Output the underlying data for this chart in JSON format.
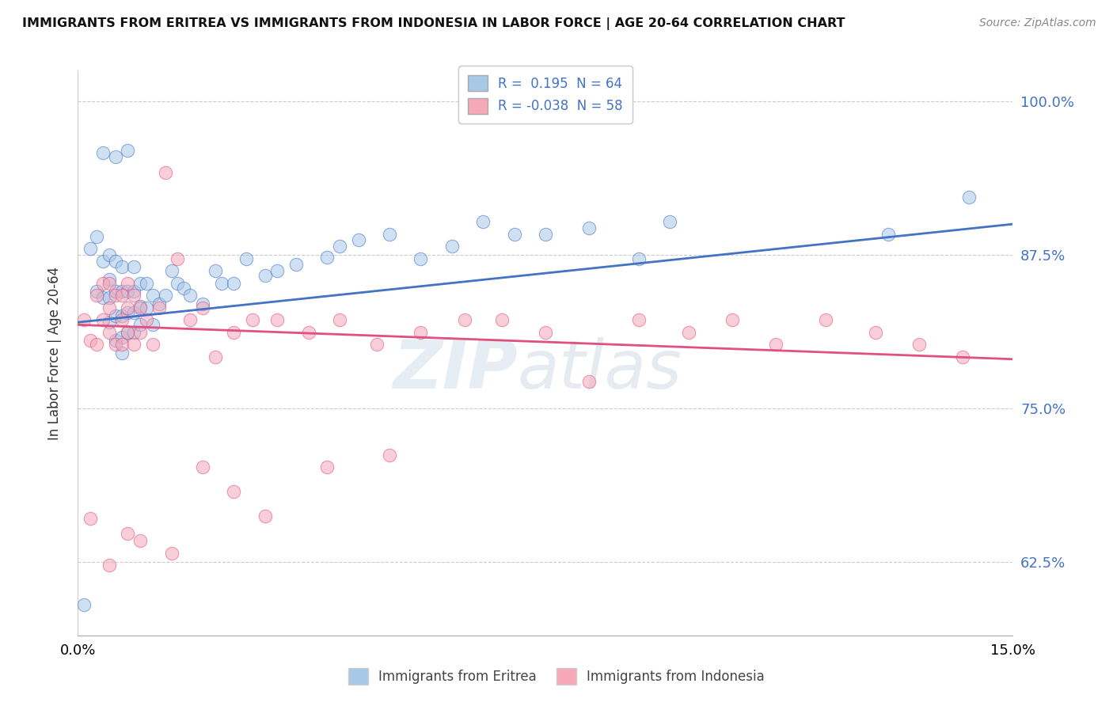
{
  "title": "IMMIGRANTS FROM ERITREA VS IMMIGRANTS FROM INDONESIA IN LABOR FORCE | AGE 20-64 CORRELATION CHART",
  "source": "Source: ZipAtlas.com",
  "ylabel": "In Labor Force | Age 20-64",
  "xlim": [
    0.0,
    0.15
  ],
  "ylim": [
    0.565,
    1.025
  ],
  "ytick_labels": [
    "62.5%",
    "75.0%",
    "87.5%",
    "100.0%"
  ],
  "ytick_values": [
    0.625,
    0.75,
    0.875,
    1.0
  ],
  "color_eritrea": "#a8c8e8",
  "color_indonesia": "#f4a8b8",
  "line_color_eritrea": "#4472c4",
  "line_color_indonesia": "#e05080",
  "r_eritrea": 0.195,
  "n_eritrea": 64,
  "r_indonesia": -0.038,
  "n_indonesia": 58,
  "background_color": "#ffffff",
  "watermark_zip": "ZIP",
  "watermark_atlas": "atlas",
  "eritrea_x": [
    0.001,
    0.002,
    0.003,
    0.003,
    0.004,
    0.004,
    0.005,
    0.005,
    0.005,
    0.005,
    0.006,
    0.006,
    0.006,
    0.006,
    0.007,
    0.007,
    0.007,
    0.007,
    0.007,
    0.008,
    0.008,
    0.008,
    0.009,
    0.009,
    0.009,
    0.009,
    0.01,
    0.01,
    0.01,
    0.011,
    0.011,
    0.012,
    0.012,
    0.013,
    0.014,
    0.015,
    0.016,
    0.017,
    0.018,
    0.02,
    0.022,
    0.023,
    0.025,
    0.027,
    0.03,
    0.032,
    0.035,
    0.04,
    0.042,
    0.045,
    0.05,
    0.055,
    0.06,
    0.065,
    0.07,
    0.075,
    0.082,
    0.09,
    0.095,
    0.13,
    0.143,
    0.004,
    0.006,
    0.008
  ],
  "eritrea_y": [
    0.59,
    0.88,
    0.845,
    0.89,
    0.84,
    0.87,
    0.82,
    0.84,
    0.855,
    0.875,
    0.805,
    0.825,
    0.845,
    0.87,
    0.795,
    0.808,
    0.825,
    0.845,
    0.865,
    0.812,
    0.828,
    0.845,
    0.812,
    0.828,
    0.845,
    0.865,
    0.818,
    0.833,
    0.852,
    0.832,
    0.852,
    0.818,
    0.842,
    0.835,
    0.842,
    0.862,
    0.852,
    0.848,
    0.842,
    0.835,
    0.862,
    0.852,
    0.852,
    0.872,
    0.858,
    0.862,
    0.867,
    0.873,
    0.882,
    0.887,
    0.892,
    0.872,
    0.882,
    0.902,
    0.892,
    0.892,
    0.897,
    0.872,
    0.902,
    0.892,
    0.922,
    0.958,
    0.955,
    0.96
  ],
  "indonesia_x": [
    0.001,
    0.002,
    0.003,
    0.003,
    0.004,
    0.004,
    0.005,
    0.005,
    0.005,
    0.006,
    0.006,
    0.007,
    0.007,
    0.007,
    0.008,
    0.008,
    0.008,
    0.009,
    0.009,
    0.01,
    0.01,
    0.011,
    0.012,
    0.013,
    0.014,
    0.016,
    0.018,
    0.02,
    0.022,
    0.025,
    0.028,
    0.032,
    0.037,
    0.042,
    0.048,
    0.055,
    0.062,
    0.068,
    0.075,
    0.082,
    0.09,
    0.098,
    0.105,
    0.112,
    0.12,
    0.128,
    0.135,
    0.142,
    0.005,
    0.008,
    0.01,
    0.015,
    0.02,
    0.025,
    0.03,
    0.04,
    0.05,
    0.002
  ],
  "indonesia_y": [
    0.822,
    0.805,
    0.802,
    0.842,
    0.822,
    0.852,
    0.812,
    0.832,
    0.852,
    0.802,
    0.842,
    0.802,
    0.822,
    0.842,
    0.812,
    0.832,
    0.852,
    0.802,
    0.842,
    0.812,
    0.832,
    0.822,
    0.802,
    0.832,
    0.942,
    0.872,
    0.822,
    0.832,
    0.792,
    0.812,
    0.822,
    0.822,
    0.812,
    0.822,
    0.802,
    0.812,
    0.822,
    0.822,
    0.812,
    0.772,
    0.822,
    0.812,
    0.822,
    0.802,
    0.822,
    0.812,
    0.802,
    0.792,
    0.622,
    0.648,
    0.642,
    0.632,
    0.702,
    0.682,
    0.662,
    0.702,
    0.712,
    0.66
  ]
}
